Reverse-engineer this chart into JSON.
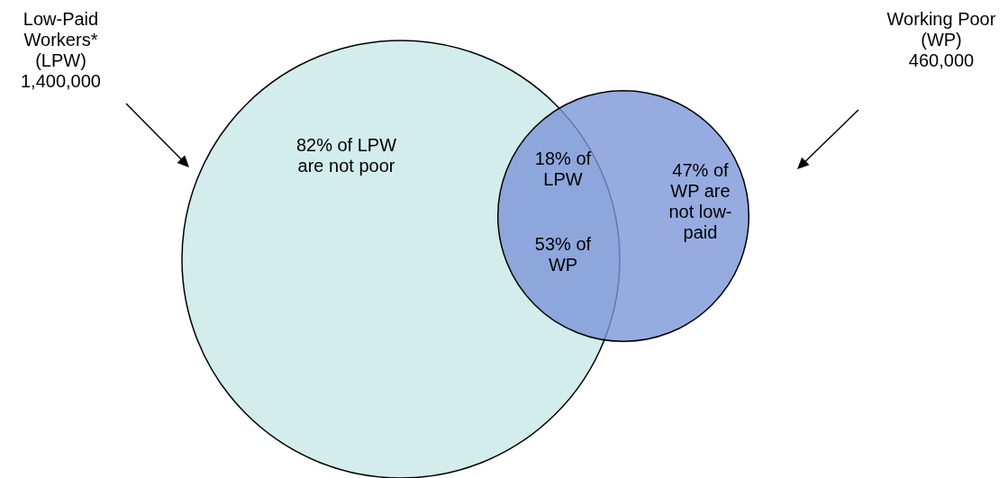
{
  "chart_data": {
    "type": "other",
    "categories": [
      "Low-Paid Workers* (LPW)",
      "Working Poor (WP)"
    ],
    "values": [
      1400000,
      460000
    ],
    "value_labels": [
      "1,400,000",
      "460,000"
    ],
    "colors": [
      "#d3ecec",
      "#7c96d8"
    ],
    "annotations": [
      "82% of LPW are not poor",
      "18% of LPW",
      "53% of WP",
      "47% of WP are not low-paid"
    ]
  }
}
